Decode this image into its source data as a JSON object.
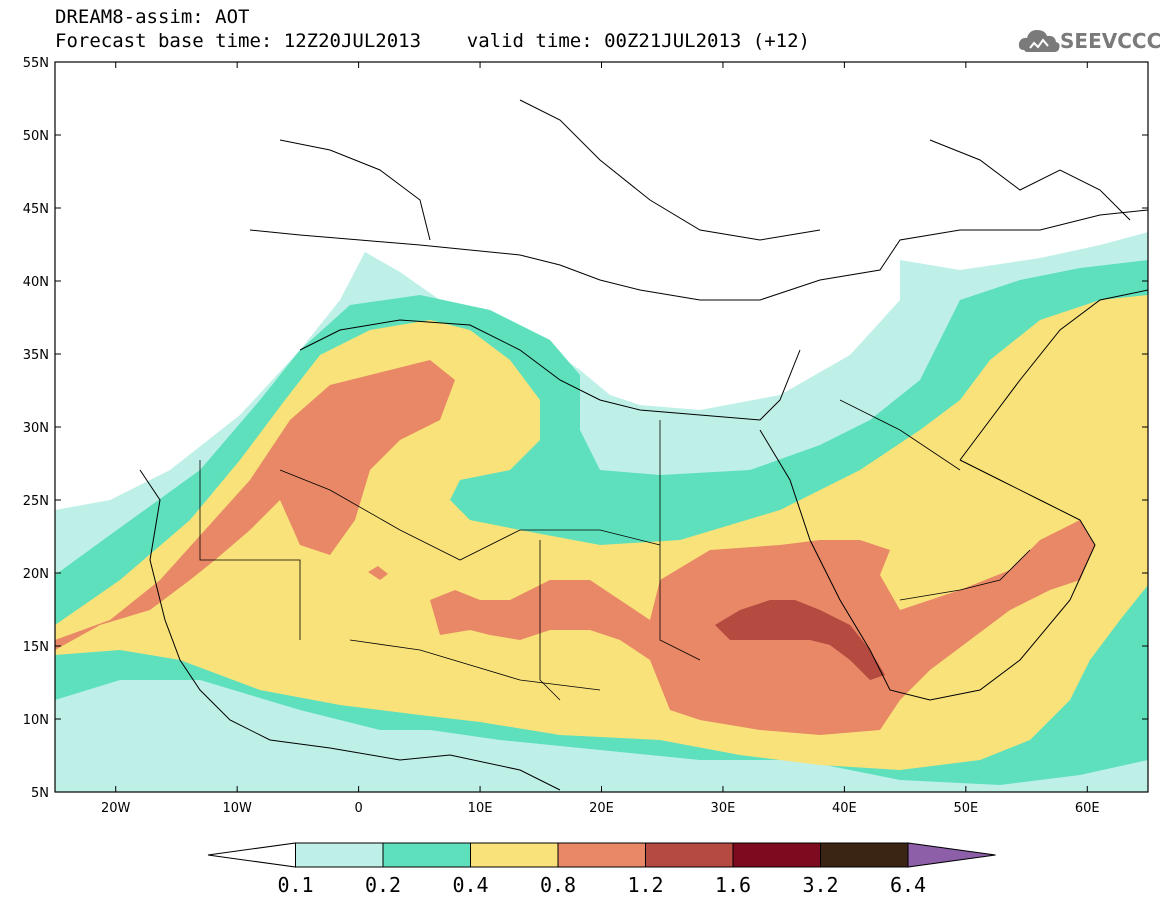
{
  "header": {
    "line1": "DREAM8-assim: AOT",
    "line2": "Forecast base time: 12Z20JUL2013    valid time: 00Z21JUL2013 (+12)"
  },
  "logo": {
    "text": "SEEVCCC",
    "icon": "cloud-icon",
    "color": "#7a7a7a"
  },
  "map": {
    "lon_range": [
      -25,
      65
    ],
    "lat_range": [
      5,
      55
    ],
    "lat_ticks": [
      "5N",
      "10N",
      "15N",
      "20N",
      "25N",
      "30N",
      "35N",
      "40N",
      "45N",
      "50N",
      "55N"
    ],
    "lon_ticks": [
      "20W",
      "10W",
      "0",
      "10E",
      "20E",
      "30E",
      "40E",
      "50E",
      "60E"
    ],
    "contour_colors": [
      "#bff0e8",
      "#5ee0bd",
      "#f9e27a",
      "#e88866",
      "#b44a40",
      "#7d0a1e",
      "#3a2413",
      "#8c5fa8"
    ]
  },
  "colorbar": {
    "labels": [
      "0.1",
      "0.2",
      "0.4",
      "0.8",
      "1.2",
      "1.6",
      "3.2",
      "6.4"
    ],
    "colors": [
      "#ffffff",
      "#bff0e8",
      "#5ee0bd",
      "#f9e27a",
      "#e88866",
      "#b44a40",
      "#7d0a1e",
      "#3a2413",
      "#8c5fa8"
    ]
  }
}
